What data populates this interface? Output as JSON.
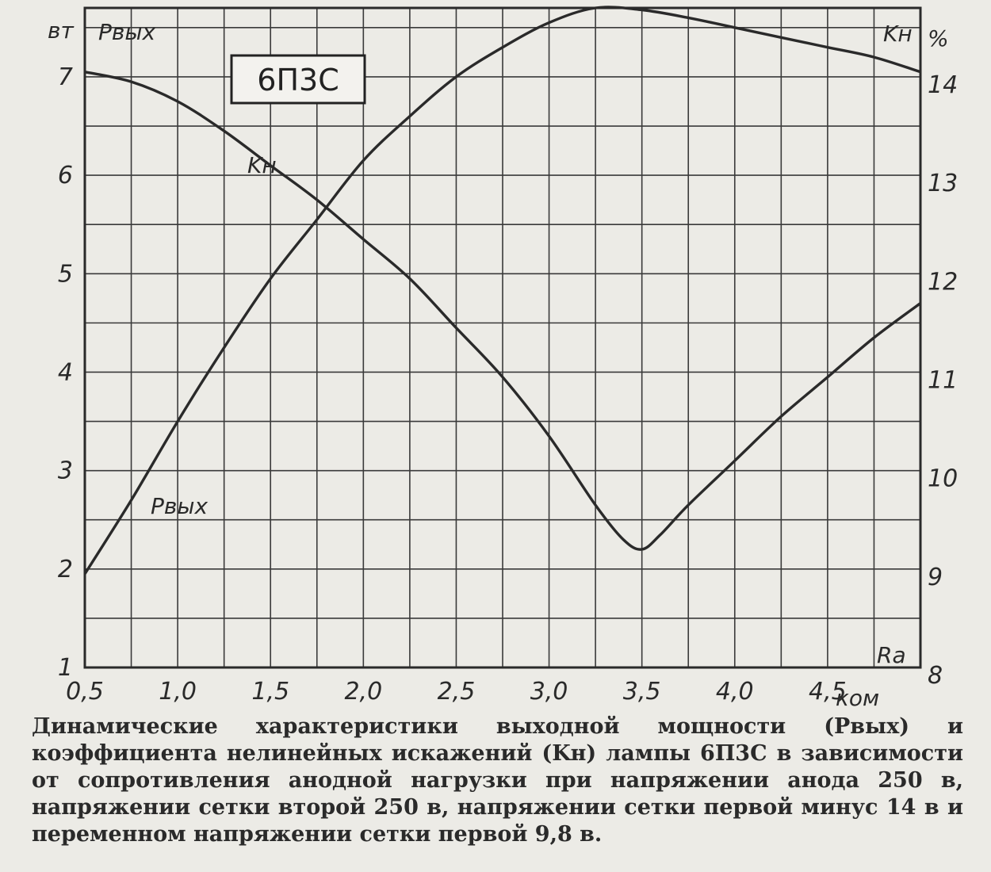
{
  "caption": "Динамические характеристики выходной мощности (Pвых) и коэффициента нелинейных искажений (Kн) лампы 6П3С в зависимости от сопротивления анодной нагрузки при напряжении анода 250 в, напряжении сетки второй 250 в, напряжении сетки первой минус 14 в и переменном напряжении сетки первой 9,8 в.",
  "chart_data": {
    "type": "line",
    "title": "6П3С",
    "xlabel": "Ra",
    "x_unit": "ком",
    "xlim": [
      0.5,
      5.0
    ],
    "x_ticks": [
      "0,5",
      "1,0",
      "1,5",
      "2,0",
      "2,5",
      "3,0",
      "3,5",
      "4,0",
      "4,5"
    ],
    "y_left_label": "Pвых",
    "y_left_unit": "вт",
    "y_left_lim": [
      1,
      7.7
    ],
    "y_left_ticks": [
      "1",
      "2",
      "3",
      "4",
      "5",
      "6",
      "7"
    ],
    "y_right_label": "Kн",
    "y_right_unit": "%",
    "y_right_lim": [
      8,
      14.7
    ],
    "y_right_ticks": [
      "8",
      "9",
      "10",
      "11",
      "12",
      "13",
      "14"
    ],
    "grid": true,
    "series": [
      {
        "name": "Pвых",
        "axis": "left",
        "x": [
          0.5,
          0.75,
          1.0,
          1.25,
          1.5,
          1.75,
          2.0,
          2.25,
          2.5,
          2.75,
          3.0,
          3.25,
          3.5,
          3.75,
          4.0,
          4.25,
          4.5,
          4.75,
          5.0
        ],
        "y": [
          1.95,
          2.7,
          3.5,
          4.25,
          4.95,
          5.55,
          6.15,
          6.6,
          7.0,
          7.3,
          7.55,
          7.7,
          7.68,
          7.6,
          7.5,
          7.4,
          7.3,
          7.2,
          7.05
        ]
      },
      {
        "name": "Kн",
        "axis": "right",
        "x": [
          0.5,
          0.75,
          1.0,
          1.25,
          1.5,
          1.75,
          2.0,
          2.25,
          2.5,
          2.75,
          3.0,
          3.25,
          3.4,
          3.5,
          3.6,
          3.75,
          4.0,
          4.25,
          4.5,
          4.75,
          5.0
        ],
        "y": [
          14.05,
          13.95,
          13.75,
          13.45,
          13.1,
          12.75,
          12.35,
          11.95,
          11.45,
          10.95,
          10.35,
          9.65,
          9.3,
          9.2,
          9.35,
          9.65,
          10.1,
          10.55,
          10.95,
          11.35,
          11.7
        ]
      }
    ]
  }
}
